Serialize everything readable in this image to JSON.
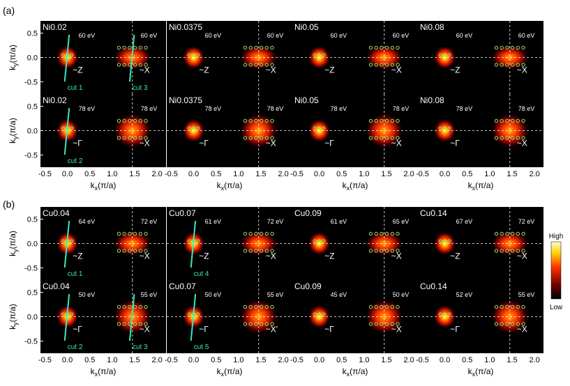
{
  "figure": {
    "section_a_label": "(a)",
    "section_b_label": "(b)",
    "ylabel": "k",
    "ylabel_sub": "y",
    "ylabel_unit": "(π/a)",
    "xlabel": "k",
    "xlabel_sub": "x",
    "xlabel_unit": "(π/a)",
    "colorbar": {
      "high": "High",
      "low": "Low"
    }
  },
  "chart_data": {
    "type": "heatmap",
    "x_ticks": [
      "-0.5",
      "0.0",
      "0.5",
      "1.0",
      "1.5",
      "2.0"
    ],
    "y_ticks": [
      "0.5",
      "0.0",
      "-0.5"
    ],
    "xlim": [
      -0.6,
      2.2
    ],
    "ylim": [
      -0.75,
      0.75
    ],
    "rows": [
      {
        "section": "a",
        "panels": [
          {
            "sample": "Ni0.02",
            "e1": "60 eV",
            "e2": "60 eV",
            "p1": "~Z",
            "p2": "~X",
            "cuts": [
              {
                "label": "cut 1",
                "x": 0.0
              },
              {
                "label": "cut 3",
                "x": 1.45
              }
            ]
          },
          {
            "sample": "Ni0.0375",
            "e1": "60 eV",
            "e2": "60 eV",
            "p1": "~Z",
            "p2": "~X",
            "cuts": []
          },
          {
            "sample": "Ni0.05",
            "e1": "60 eV",
            "e2": "60 eV",
            "p1": "~Z",
            "p2": "~X",
            "cuts": []
          },
          {
            "sample": "Ni0.08",
            "e1": "60 eV",
            "e2": "60 eV",
            "p1": "~Z",
            "p2": "~X",
            "cuts": []
          }
        ]
      },
      {
        "section": "a",
        "panels": [
          {
            "sample": "Ni0.02",
            "e1": "78 eV",
            "e2": "78 eV",
            "p1": "~Γ",
            "p2": "~X",
            "cuts": [
              {
                "label": "cut 2",
                "x": 0.0
              }
            ]
          },
          {
            "sample": "Ni0.0375",
            "e1": "78 eV",
            "e2": "78 eV",
            "p1": "~Γ",
            "p2": "~X",
            "cuts": []
          },
          {
            "sample": "Ni0.05",
            "e1": "78 eV",
            "e2": "78 eV",
            "p1": "~Γ",
            "p2": "~X",
            "cuts": []
          },
          {
            "sample": "Ni0.08",
            "e1": "78 eV",
            "e2": "78 eV",
            "p1": "~Γ",
            "p2": "~X",
            "cuts": []
          }
        ]
      },
      {
        "section": "b",
        "panels": [
          {
            "sample": "Cu0.04",
            "e1": "64 eV",
            "e2": "72 eV",
            "p1": "~Z",
            "p2": "~X",
            "cuts": [
              {
                "label": "cut 1",
                "x": 0.0
              }
            ]
          },
          {
            "sample": "Cu0.07",
            "e1": "61 eV",
            "e2": "72 eV",
            "p1": "~Z",
            "p2": "~X",
            "cuts": [
              {
                "label": "cut 4",
                "x": 0.0
              }
            ]
          },
          {
            "sample": "Cu0.09",
            "e1": "61 eV",
            "e2": "65 eV",
            "p1": "~Z",
            "p2": "~X",
            "cuts": []
          },
          {
            "sample": "Cu0.14",
            "e1": "67 eV",
            "e2": "72 eV",
            "p1": "~Z",
            "p2": "~X",
            "cuts": []
          }
        ]
      },
      {
        "section": "b",
        "panels": [
          {
            "sample": "Cu0.04",
            "e1": "50 eV",
            "e2": "55 eV",
            "p1": "~Γ",
            "p2": "~X",
            "cuts": [
              {
                "label": "cut 2",
                "x": 0.0
              },
              {
                "label": "cut 3",
                "x": 1.45
              }
            ]
          },
          {
            "sample": "Cu0.07",
            "e1": "50 eV",
            "e2": "55 eV",
            "p1": "~Γ",
            "p2": "~X'",
            "cuts": [
              {
                "label": "cut 5",
                "x": 0.0
              }
            ]
          },
          {
            "sample": "Cu0.09",
            "e1": "45 eV",
            "e2": "50 eV",
            "p1": "~Γ",
            "p2": "~X",
            "cuts": []
          },
          {
            "sample": "Cu0.14",
            "e1": "52 eV",
            "e2": "55 eV",
            "p1": "~Γ",
            "p2": "~X",
            "cuts": []
          }
        ]
      }
    ]
  }
}
